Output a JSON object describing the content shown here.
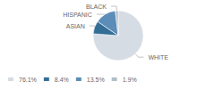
{
  "chart_data": {
    "type": "pie",
    "categories": [
      "WHITE",
      "ASIAN",
      "HISPANIC",
      "BLACK"
    ],
    "values": [
      76.1,
      8.4,
      13.5,
      1.9
    ],
    "value_labels": [
      "76.1%",
      "8.4%",
      "13.5%",
      "1.9%"
    ],
    "colors": [
      "#d6dce4",
      "#336e96",
      "#5b8db8",
      "#b0bec8"
    ],
    "legend": "lower left"
  }
}
